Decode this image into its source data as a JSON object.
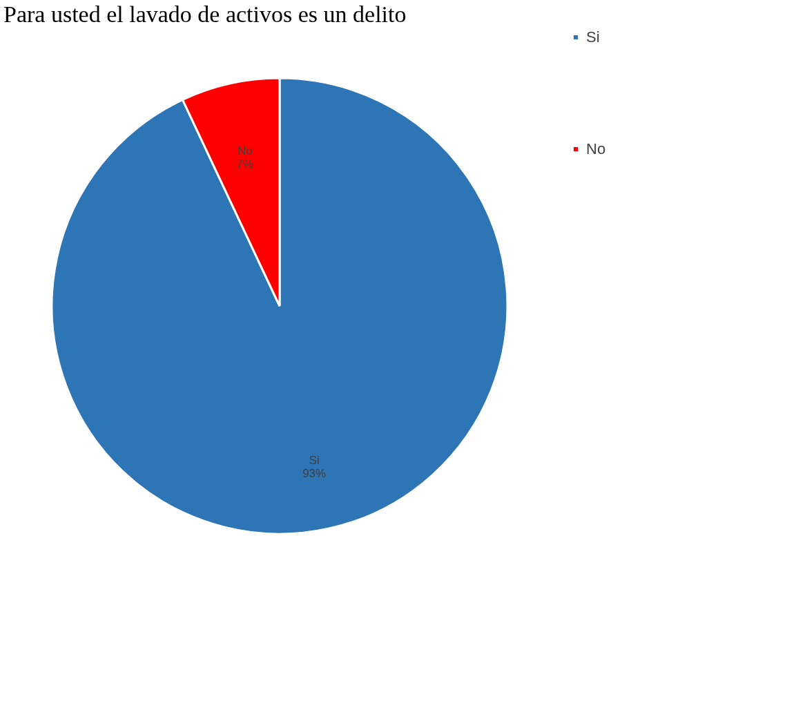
{
  "chart_data": {
    "type": "pie",
    "title": "Para usted el lavado de activos es un delito",
    "categories": [
      "Si",
      "No"
    ],
    "values": [
      93,
      7
    ],
    "colors": [
      "#2e75b6",
      "#ff0000"
    ],
    "value_labels": [
      "93%",
      "7%"
    ],
    "legend": "right"
  }
}
